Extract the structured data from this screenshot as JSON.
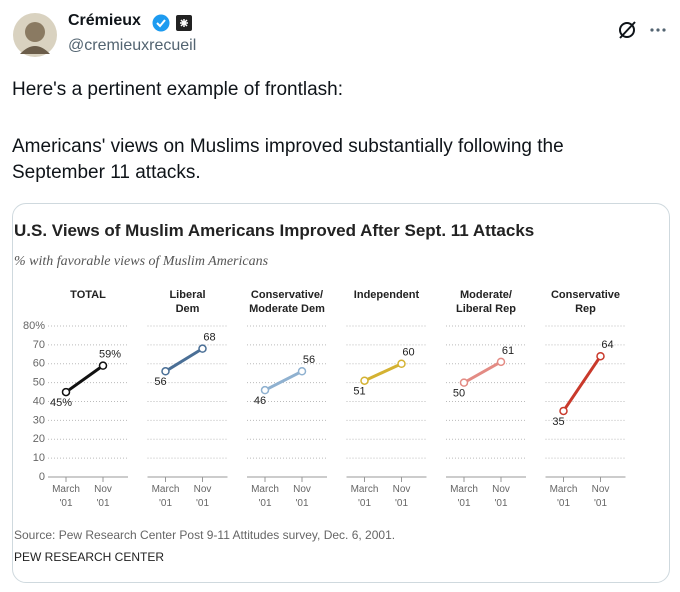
{
  "post": {
    "author": {
      "name": "Crémieux",
      "handle": "@cremieuxrecueil"
    },
    "paragraphs": [
      "Here's a pertinent example of frontlash:",
      "Americans' views on Muslims improved substantially following the September 11 attacks."
    ]
  },
  "figure": {
    "title": "U.S. Views of Muslim Americans Improved After Sept. 11 Attacks",
    "subtitle": "% with favorable views of Muslim Americans",
    "source": "Source: Pew Research Center Post 9-11 Attitudes survey, Dec. 6, 2001.",
    "brand": "PEW RESEARCH CENTER"
  },
  "chart_data": [
    {
      "type": "line",
      "title": "TOTAL",
      "categories": [
        "March\n'01",
        "Nov\n'01"
      ],
      "values": [
        45,
        59
      ],
      "value_labels": [
        "45%",
        "59%"
      ],
      "color": "#111111",
      "ylim": [
        0,
        80
      ],
      "yticks": [
        0,
        10,
        20,
        30,
        40,
        50,
        60,
        70,
        {
          "value": 80,
          "label": "80%"
        }
      ],
      "grid": true
    },
    {
      "type": "line",
      "title": "Liberal\nDem",
      "categories": [
        "March\n'01",
        "Nov\n'01"
      ],
      "values": [
        56,
        68
      ],
      "color": "#4a6f96",
      "ylim": [
        0,
        80
      ],
      "yticks": [
        0,
        10,
        20,
        30,
        40,
        50,
        60,
        70,
        80
      ],
      "grid": true
    },
    {
      "type": "line",
      "title": "Conservative/\nModerate Dem",
      "categories": [
        "March\n'01",
        "Nov\n'01"
      ],
      "values": [
        46,
        56
      ],
      "color": "#8fb1d0",
      "ylim": [
        0,
        80
      ],
      "yticks": [
        0,
        10,
        20,
        30,
        40,
        50,
        60,
        70,
        80
      ],
      "grid": true
    },
    {
      "type": "line",
      "title": "Independent",
      "categories": [
        "March\n'01",
        "Nov\n'01"
      ],
      "values": [
        51,
        60
      ],
      "color": "#d4b232",
      "ylim": [
        0,
        80
      ],
      "yticks": [
        0,
        10,
        20,
        30,
        40,
        50,
        60,
        70,
        80
      ],
      "grid": true
    },
    {
      "type": "line",
      "title": "Moderate/\nLiberal Rep",
      "categories": [
        "March\n'01",
        "Nov\n'01"
      ],
      "values": [
        50,
        61
      ],
      "color": "#e38b84",
      "ylim": [
        0,
        80
      ],
      "yticks": [
        0,
        10,
        20,
        30,
        40,
        50,
        60,
        70,
        80
      ],
      "grid": true
    },
    {
      "type": "line",
      "title": "Conservative\nRep",
      "categories": [
        "March\n'01",
        "Nov\n'01"
      ],
      "values": [
        35,
        64
      ],
      "color": "#c9392b",
      "ylim": [
        0,
        80
      ],
      "yticks": [
        0,
        10,
        20,
        30,
        40,
        50,
        60,
        70,
        80
      ],
      "grid": true
    }
  ]
}
